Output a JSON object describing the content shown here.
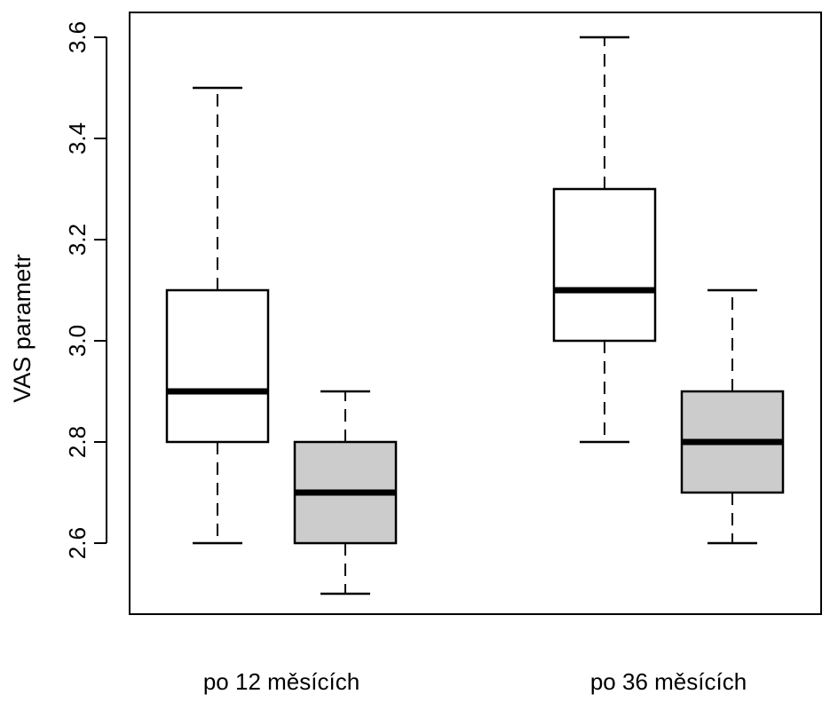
{
  "chart_data": {
    "type": "boxplot",
    "title": "",
    "xlabel": "",
    "ylabel": "VAS parametr",
    "ylim": [
      2.45,
      3.65
    ],
    "yticks": [
      "2.6",
      "2.8",
      "3.0",
      "3.2",
      "3.4",
      "3.6"
    ],
    "grid": false,
    "groups": [
      "po 12 měsících",
      "po 36 měsících"
    ],
    "series": [
      {
        "fill": "#ffffff"
      },
      {
        "fill": "#cccccc"
      }
    ],
    "boxes": [
      {
        "group": 0,
        "series": 0,
        "min": 2.6,
        "q1": 2.8,
        "median": 2.9,
        "q3": 3.1,
        "max": 3.5
      },
      {
        "group": 0,
        "series": 1,
        "min": 2.5,
        "q1": 2.6,
        "median": 2.7,
        "q3": 2.8,
        "max": 2.9
      },
      {
        "group": 1,
        "series": 0,
        "min": 2.8,
        "q1": 3.0,
        "median": 3.1,
        "q3": 3.3,
        "max": 3.6
      },
      {
        "group": 1,
        "series": 1,
        "min": 2.6,
        "q1": 2.7,
        "median": 2.8,
        "q3": 2.9,
        "max": 3.1
      }
    ]
  }
}
